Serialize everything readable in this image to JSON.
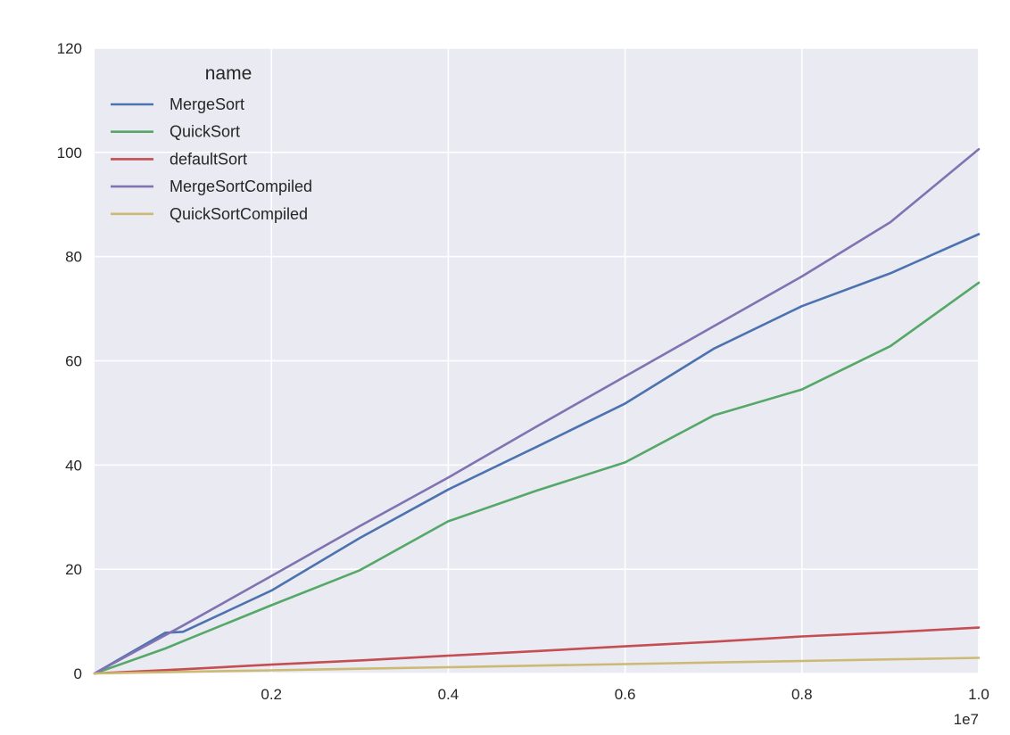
{
  "chart_data": {
    "type": "line",
    "title": "",
    "xlabel": "",
    "ylabel": "",
    "x_offset_label": "1e7",
    "x_scale": 10000000,
    "xlim": [
      0,
      10000000
    ],
    "ylim": [
      0,
      120
    ],
    "x_ticks": [
      2000000,
      4000000,
      6000000,
      8000000,
      10000000
    ],
    "x_tick_labels": [
      "0.2",
      "0.4",
      "0.6",
      "0.8",
      "1.0"
    ],
    "y_ticks": [
      0,
      20,
      40,
      60,
      80,
      100,
      120
    ],
    "y_tick_labels": [
      "0",
      "20",
      "40",
      "60",
      "80",
      "100",
      "120"
    ],
    "grid": true,
    "legend": {
      "title": "name",
      "position": "top-left"
    },
    "colors": {
      "background": "#eaeaf2",
      "grid": "#ffffff",
      "text": "#262626"
    },
    "series": [
      {
        "name": "MergeSort",
        "color": "#4c72b0",
        "x": [
          0,
          800000,
          1000000,
          2000000,
          3000000,
          4000000,
          5000000,
          6000000,
          7000000,
          8000000,
          9000000,
          10000000
        ],
        "y": [
          0,
          7.8,
          8.0,
          15.9,
          26.0,
          35.3,
          43.5,
          51.8,
          62.3,
          70.5,
          76.8,
          84.3
        ]
      },
      {
        "name": "QuickSort",
        "color": "#55a868",
        "x": [
          0,
          800000,
          1000000,
          2000000,
          3000000,
          4000000,
          5000000,
          6000000,
          7000000,
          8000000,
          9000000,
          10000000
        ],
        "y": [
          0,
          4.8,
          6.2,
          13.1,
          19.8,
          29.2,
          35.1,
          40.5,
          49.5,
          54.5,
          62.8,
          75.0
        ]
      },
      {
        "name": "defaultSort",
        "color": "#c44e52",
        "x": [
          0,
          1000000,
          2000000,
          3000000,
          4000000,
          5000000,
          6000000,
          7000000,
          8000000,
          9000000,
          10000000
        ],
        "y": [
          0,
          0.8,
          1.7,
          2.5,
          3.4,
          4.3,
          5.2,
          6.1,
          7.1,
          7.9,
          8.8
        ]
      },
      {
        "name": "MergeSortCompiled",
        "color": "#8172b2",
        "x": [
          0,
          1000000,
          2000000,
          3000000,
          4000000,
          5000000,
          6000000,
          7000000,
          8000000,
          9000000,
          10000000
        ],
        "y": [
          0,
          9.2,
          18.7,
          28.3,
          37.6,
          47.4,
          57.0,
          66.6,
          76.2,
          86.6,
          100.6
        ]
      },
      {
        "name": "QuickSortCompiled",
        "color": "#ccb974",
        "x": [
          0,
          1000000,
          2000000,
          3000000,
          4000000,
          5000000,
          6000000,
          7000000,
          8000000,
          9000000,
          10000000
        ],
        "y": [
          0,
          0.3,
          0.6,
          0.9,
          1.2,
          1.5,
          1.8,
          2.1,
          2.4,
          2.7,
          3.0
        ]
      }
    ]
  }
}
